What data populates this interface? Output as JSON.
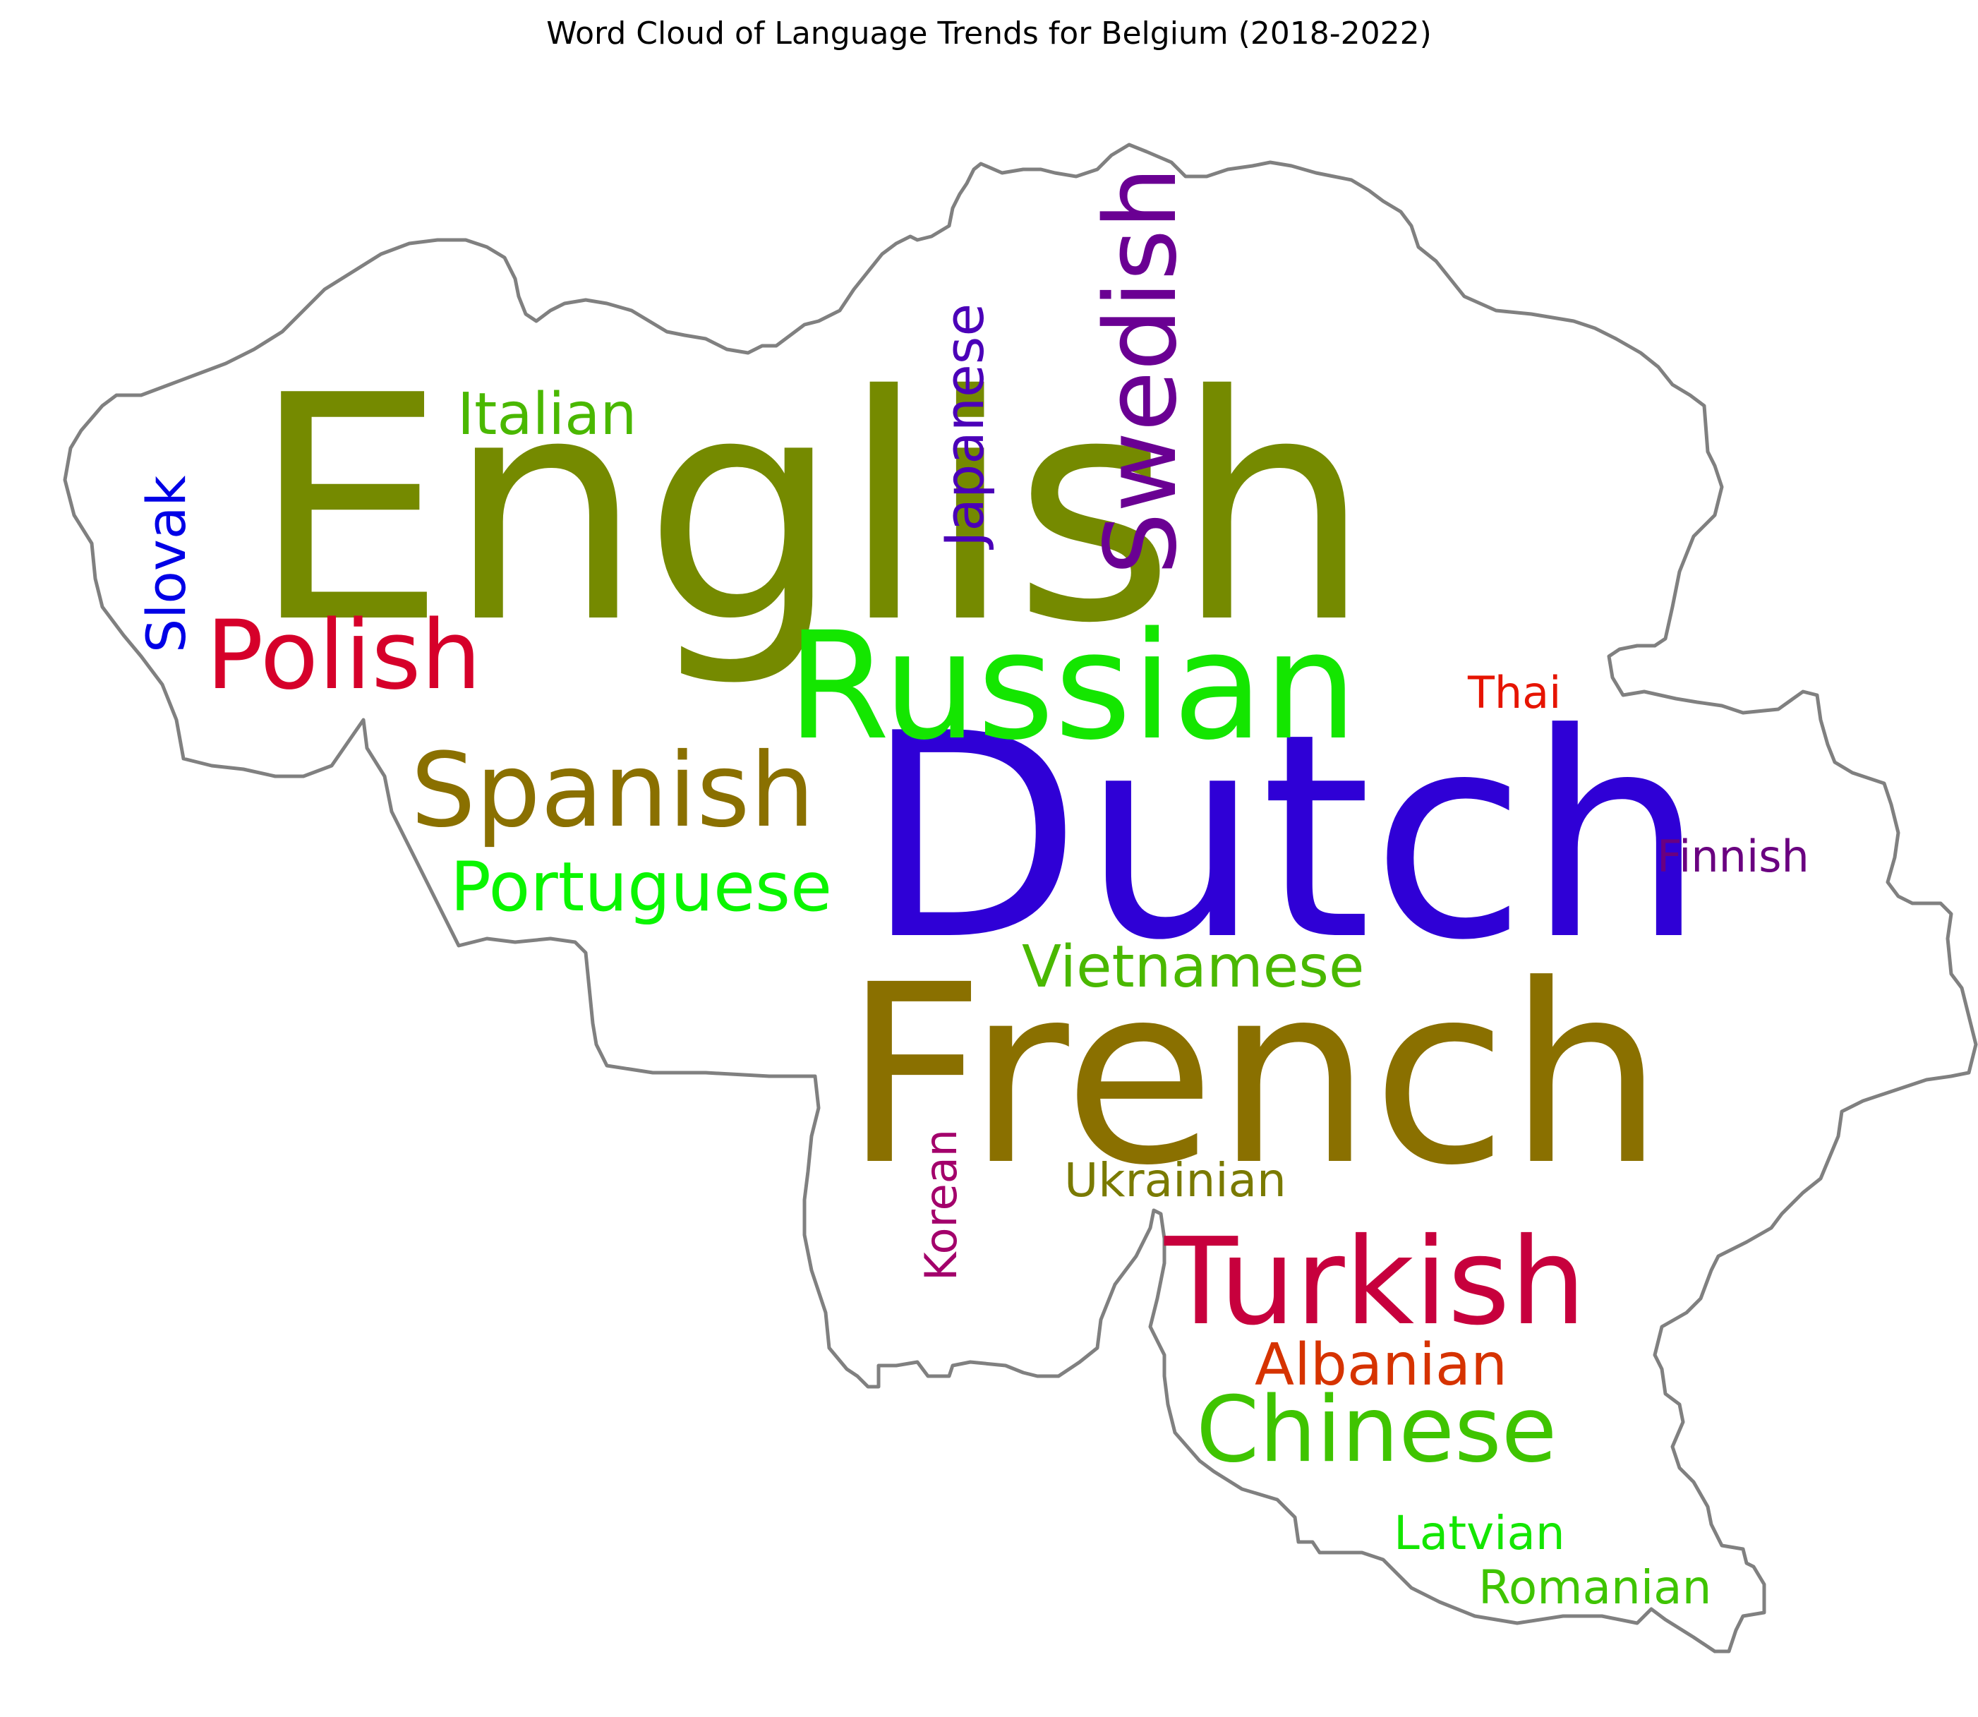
{
  "chart_data": {
    "type": "wordcloud",
    "title": "Word Cloud of Language Trends for Belgium (2018-2022)",
    "mask_shape": "Belgium outline",
    "outline_color": "#808080",
    "words": [
      {
        "text": "English",
        "color": "#758a00",
        "orientation": "horizontal"
      },
      {
        "text": "Dutch",
        "color": "#2f00d6",
        "orientation": "horizontal"
      },
      {
        "text": "French",
        "color": "#8a7000",
        "orientation": "horizontal"
      },
      {
        "text": "Russian",
        "color": "#14e600",
        "orientation": "horizontal"
      },
      {
        "text": "Turkish",
        "color": "#c7003d",
        "orientation": "horizontal"
      },
      {
        "text": "Spanish",
        "color": "#8a7000",
        "orientation": "horizontal"
      },
      {
        "text": "Polish",
        "color": "#d6002a",
        "orientation": "horizontal"
      },
      {
        "text": "Swedish",
        "color": "#6a0093",
        "orientation": "vertical"
      },
      {
        "text": "Chinese",
        "color": "#3fc400",
        "orientation": "horizontal"
      },
      {
        "text": "Portuguese",
        "color": "#0af500",
        "orientation": "horizontal"
      },
      {
        "text": "Vietnamese",
        "color": "#4ab800",
        "orientation": "horizontal"
      },
      {
        "text": "Italian",
        "color": "#4ab800",
        "orientation": "horizontal"
      },
      {
        "text": "Albanian",
        "color": "#d63300",
        "orientation": "horizontal"
      },
      {
        "text": "Japanese",
        "color": "#4b00b8",
        "orientation": "vertical"
      },
      {
        "text": "Slovak",
        "color": "#0000e6",
        "orientation": "vertical"
      },
      {
        "text": "Ukrainian",
        "color": "#7a7a00",
        "orientation": "horizontal"
      },
      {
        "text": "Latvian",
        "color": "#14e600",
        "orientation": "horizontal"
      },
      {
        "text": "Romanian",
        "color": "#3fc400",
        "orientation": "horizontal"
      },
      {
        "text": "Finnish",
        "color": "#6a0080",
        "orientation": "horizontal"
      },
      {
        "text": "Thai",
        "color": "#e61400",
        "orientation": "horizontal"
      },
      {
        "text": "Korean",
        "color": "#a3006b",
        "orientation": "vertical"
      }
    ]
  }
}
